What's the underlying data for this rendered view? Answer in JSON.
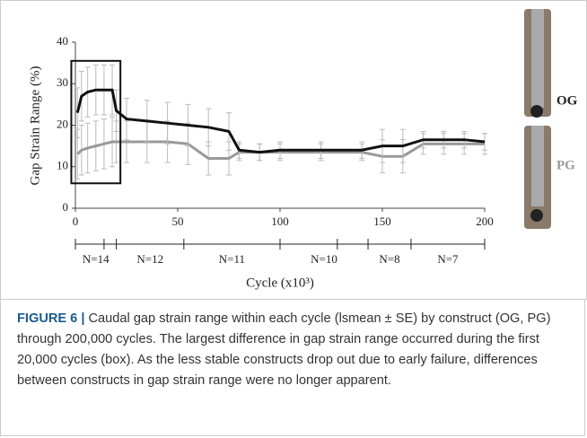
{
  "chart_data": {
    "type": "line",
    "y_label": "Gap Strain Range (%)",
    "x_label": "Cycle (x10³)",
    "x": [
      1,
      3,
      6,
      10,
      14,
      18,
      20,
      25,
      35,
      45,
      55,
      65,
      75,
      80,
      90,
      100,
      120,
      140,
      150,
      160,
      170,
      180,
      190,
      200
    ],
    "series": [
      {
        "name": "OG",
        "color": "#111111",
        "values": [
          23,
          27,
          28,
          28.5,
          28.5,
          28.5,
          23.5,
          21.5,
          21,
          20.5,
          20,
          19.5,
          18.5,
          14,
          13.5,
          14,
          14,
          14,
          15,
          15,
          16.5,
          16.5,
          16.5,
          16
        ],
        "errors": [
          6,
          6,
          6,
          6,
          6,
          6,
          5,
          5,
          5,
          5,
          5,
          4.5,
          4.5,
          2,
          2,
          2,
          2,
          2,
          4,
          4,
          2,
          2,
          2,
          2
        ]
      },
      {
        "name": "PG",
        "color": "#999999",
        "values": [
          13,
          14,
          14.5,
          15,
          15.5,
          16,
          16,
          16,
          16,
          16,
          15.5,
          12,
          12,
          13.5,
          13.5,
          13.5,
          13.5,
          13.5,
          12.5,
          12.5,
          15.5,
          15.5,
          15.5,
          15.5
        ],
        "errors": [
          6,
          6,
          6,
          6,
          6,
          6,
          5,
          5,
          5,
          5,
          5,
          4,
          4,
          2,
          2,
          2,
          2,
          2,
          4,
          4,
          2.5,
          2.5,
          2.5,
          2.5
        ]
      }
    ],
    "xlim": [
      0,
      200
    ],
    "ylim": [
      0,
      40
    ],
    "xticks": [
      0,
      50,
      100,
      150,
      200
    ],
    "yticks": [
      0,
      10,
      20,
      30,
      40
    ],
    "box": {
      "x": [
        -2,
        22
      ],
      "y": [
        6,
        35.5
      ]
    },
    "timeline_ticks": [
      0,
      14,
      20,
      53,
      100,
      128,
      143,
      164,
      200
    ],
    "segments": [
      {
        "label": "N=14",
        "start": 0,
        "end": 20
      },
      {
        "label": "N=12",
        "start": 20,
        "end": 53
      },
      {
        "label": "N=11",
        "start": 53,
        "end": 100
      },
      {
        "label": "N=10",
        "start": 100,
        "end": 143
      },
      {
        "label": "N=8",
        "start": 143,
        "end": 164
      },
      {
        "label": "N=7",
        "start": 164,
        "end": 200
      }
    ],
    "image_labels": [
      "OG",
      "PG"
    ]
  },
  "caption": {
    "label": "FIGURE 6 |",
    "text": "Caudal gap strain range within each cycle (lsmean ± SE) by construct (OG, PG) through 200,000 cycles. The largest difference in gap strain range occurred during the first 20,000 cycles (box). As the less stable constructs drop out due to early failure, differences between constructs in gap strain range were no longer apparent."
  }
}
